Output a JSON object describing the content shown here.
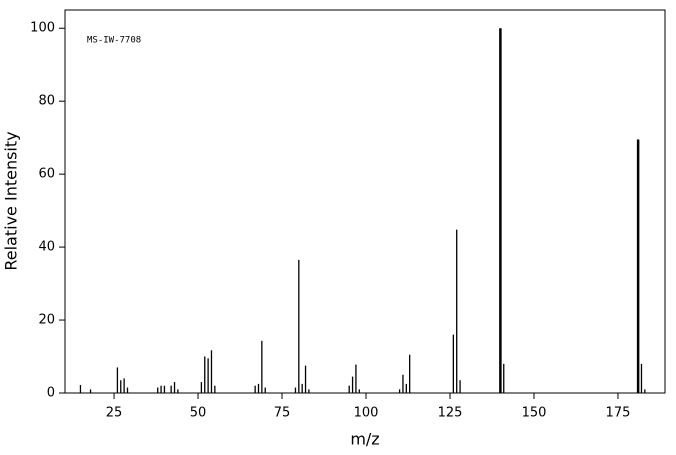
{
  "chart_data": {
    "type": "stem",
    "annotation": "MS-IW-7708",
    "xlabel": "m/z",
    "ylabel": "Relative Intensity",
    "color": "#000000",
    "xlim": [
      10.4,
      189
    ],
    "ylim": [
      0,
      105
    ],
    "xticks": [
      25,
      50,
      75,
      100,
      125,
      150,
      175
    ],
    "yticks": [
      0,
      20,
      40,
      60,
      80,
      100
    ],
    "x": [
      15,
      18,
      26,
      27,
      28,
      29,
      38,
      39,
      40,
      42,
      43,
      44,
      51,
      52,
      53,
      54,
      55,
      67,
      68,
      69,
      70,
      79,
      80,
      81,
      82,
      83,
      95,
      96,
      97,
      98,
      110,
      111,
      112,
      113,
      126,
      127,
      128,
      140,
      141,
      181,
      182,
      183
    ],
    "values": [
      2.2,
      1,
      7,
      3.5,
      4,
      1.5,
      1.5,
      2,
      2,
      2,
      3,
      1,
      3,
      10,
      9.5,
      11.7,
      2,
      2,
      2.5,
      14.3,
      1.5,
      1.5,
      36.5,
      2.5,
      7.5,
      1,
      2,
      4.5,
      7.8,
      1,
      1,
      5,
      2.5,
      10.5,
      16,
      44.8,
      3.5,
      100,
      8,
      69.5,
      8,
      1
    ]
  }
}
